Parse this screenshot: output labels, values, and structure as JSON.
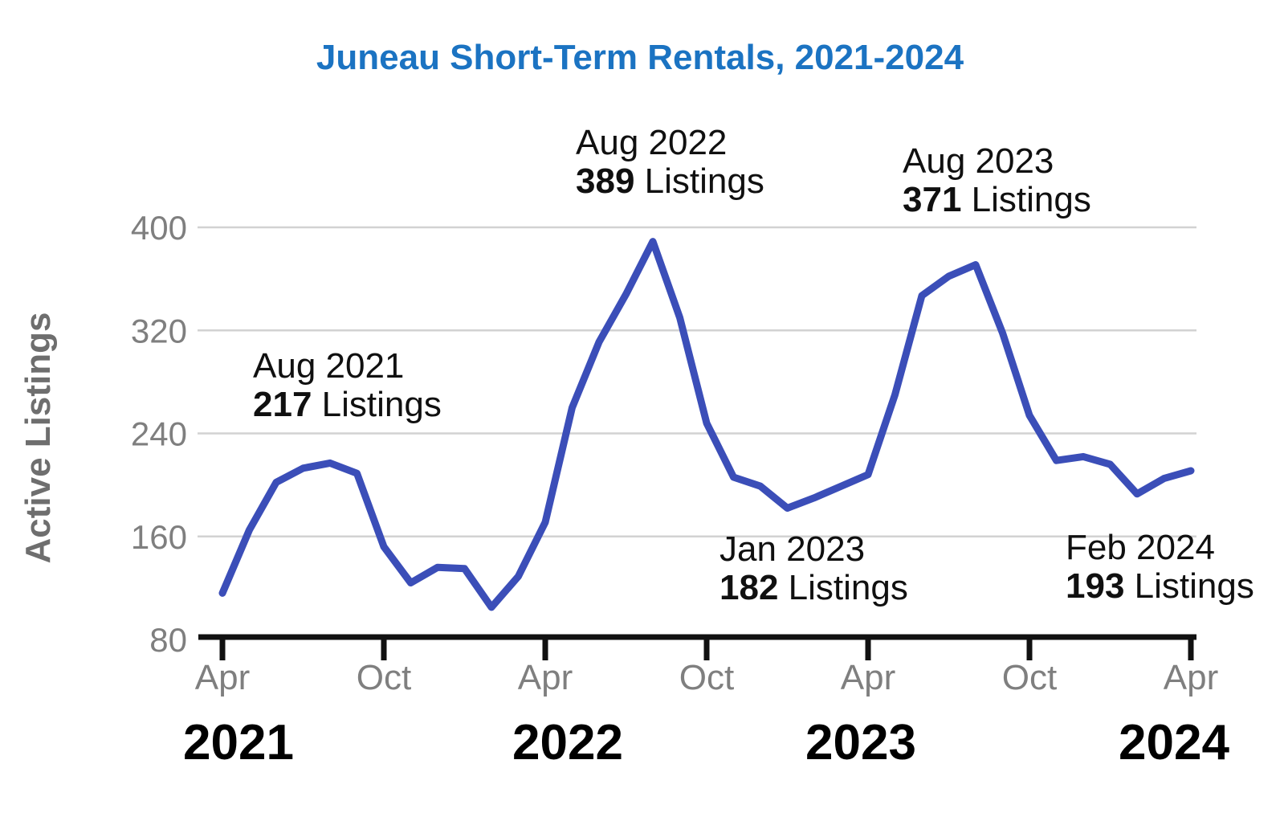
{
  "title": "Juneau Short-Term Rentals, 2021-2024",
  "y_axis": {
    "label": "Active Listings",
    "ticks": [
      80,
      160,
      240,
      320,
      400
    ],
    "min": 80,
    "max": 400
  },
  "x_axis": {
    "tick_labels": [
      "Apr",
      "Oct",
      "Apr",
      "Oct",
      "Apr",
      "Oct",
      "Apr"
    ],
    "year_labels": [
      "2021",
      "2022",
      "2023",
      "2024"
    ]
  },
  "annotations": [
    {
      "line1": "Aug 2021",
      "value": "217",
      "suffix": " Listings"
    },
    {
      "line1": "Aug 2022",
      "value": "389",
      "suffix": " Listings"
    },
    {
      "line1": "Aug 2023",
      "value": "371",
      "suffix": " Listings"
    },
    {
      "line1": "Jan 2023",
      "value": "182",
      "suffix": " Listings"
    },
    {
      "line1": "Feb 2024",
      "value": "193",
      "suffix": " Listings"
    }
  ],
  "colors": {
    "line": "#3B4EB8",
    "title": "#1B73C2",
    "tick_text": "#7f7f7f",
    "axis_title_text": "#6e6e6e",
    "year_text": "#000000",
    "gridline": "#d2d2d2",
    "axis": "#111111",
    "annotation_text": "#101010"
  },
  "chart_data": {
    "type": "line",
    "title": "Juneau Short-Term Rentals, 2021-2024",
    "xlabel": "",
    "ylabel": "Active Listings",
    "ylim": [
      80,
      400
    ],
    "y_ticks": [
      80,
      160,
      240,
      320,
      400
    ],
    "grid": true,
    "legend_position": "none",
    "x": [
      "Apr 2021",
      "May 2021",
      "Jun 2021",
      "Jul 2021",
      "Aug 2021",
      "Sep 2021",
      "Oct 2021",
      "Nov 2021",
      "Dec 2021",
      "Jan 2022",
      "Feb 2022",
      "Mar 2022",
      "Apr 2022",
      "May 2022",
      "Jun 2022",
      "Jul 2022",
      "Aug 2022",
      "Sep 2022",
      "Oct 2022",
      "Nov 2022",
      "Dec 2022",
      "Jan 2023",
      "Feb 2023",
      "Mar 2023",
      "Apr 2023",
      "May 2023",
      "Jun 2023",
      "Jul 2023",
      "Aug 2023",
      "Sep 2023",
      "Oct 2023",
      "Nov 2023",
      "Dec 2023",
      "Jan 2024",
      "Feb 2024",
      "Mar 2024",
      "Apr 2024"
    ],
    "values": [
      116,
      165,
      202,
      213,
      217,
      209,
      152,
      124,
      136,
      135,
      105,
      129,
      171,
      260,
      311,
      348,
      389,
      330,
      248,
      206,
      199,
      182,
      190,
      199,
      208,
      270,
      347,
      362,
      371,
      318,
      254,
      219,
      222,
      216,
      193,
      205,
      211
    ],
    "x_major_ticks": [
      "Apr 2021",
      "Oct 2021",
      "Apr 2022",
      "Oct 2022",
      "Apr 2023",
      "Oct 2023",
      "Apr 2024"
    ],
    "annotated_points": [
      {
        "x": "Aug 2021",
        "y": 217
      },
      {
        "x": "Aug 2022",
        "y": 389
      },
      {
        "x": "Aug 2023",
        "y": 371
      },
      {
        "x": "Jan 2023",
        "y": 182
      },
      {
        "x": "Feb 2024",
        "y": 193
      }
    ]
  }
}
